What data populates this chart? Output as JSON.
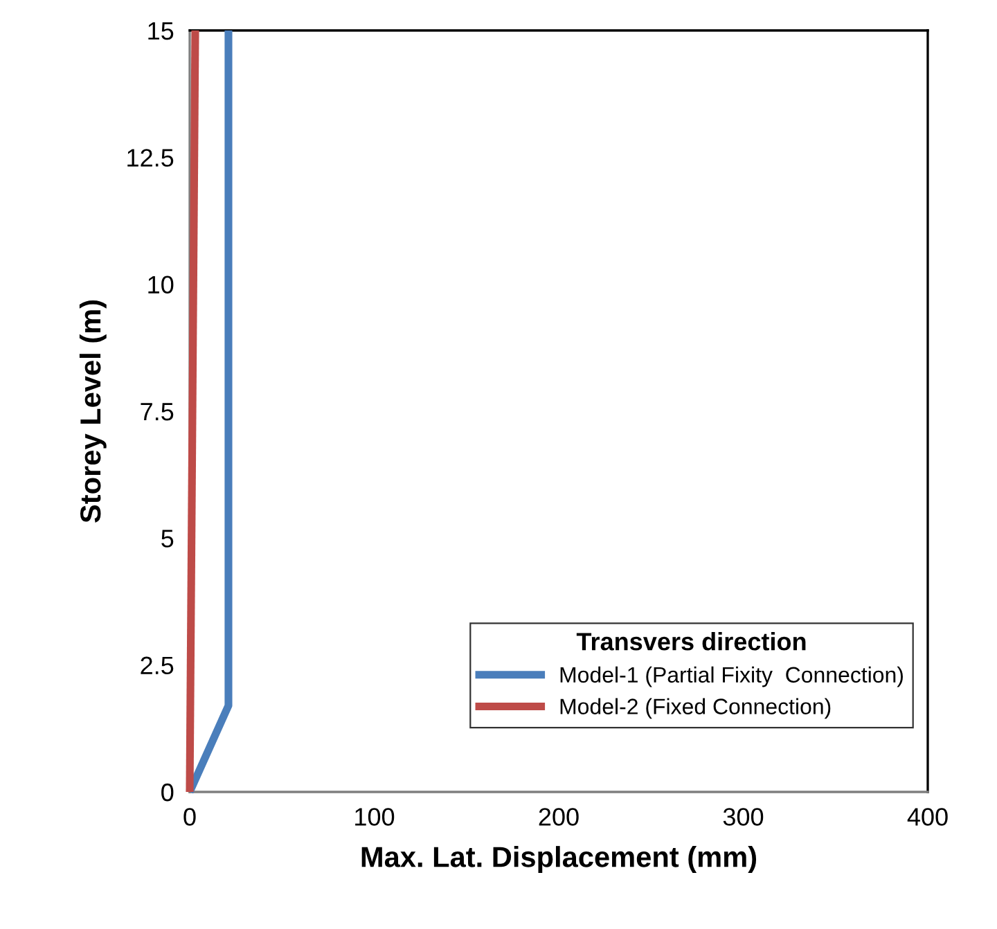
{
  "chart_data": {
    "type": "line",
    "xlabel": "Max. Lat. Displacement (mm)",
    "ylabel": "Storey Level (m)",
    "legend_title": "Transvers direction",
    "series": [
      {
        "name": "Model-1 (Partial Fixity  Connection)",
        "color": "#4a7ebb",
        "x": [
          0,
          21,
          21
        ],
        "values": [
          0,
          1.7,
          15
        ]
      },
      {
        "name": "Model-2 (Fixed Connection)",
        "color": "#be4b48",
        "x": [
          0,
          3
        ],
        "values": [
          0,
          15
        ]
      }
    ],
    "xlim": [
      0,
      400
    ],
    "xticks": [
      0,
      100,
      200,
      300,
      400
    ],
    "ylim": [
      0,
      15
    ],
    "yticks": [
      0,
      2.5,
      5,
      7.5,
      10,
      12.5,
      15
    ],
    "grid": false,
    "legend": "bottom right",
    "marker": "none",
    "line_style": "solid"
  }
}
